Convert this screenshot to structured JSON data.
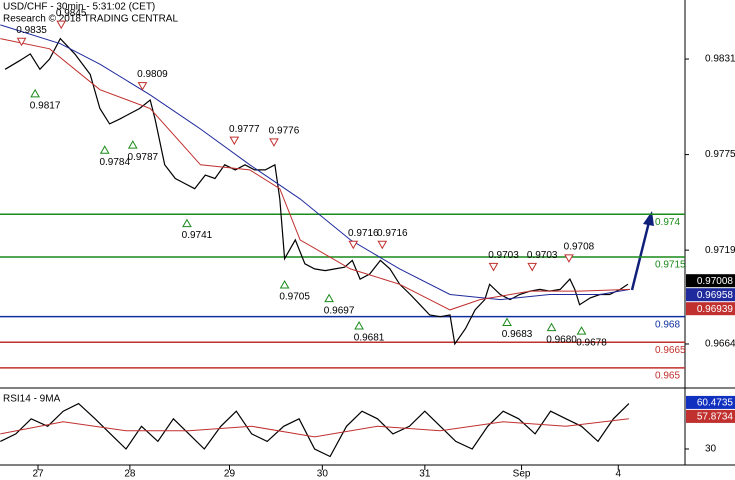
{
  "chart_data": [
    {
      "type": "line",
      "title": "USD/CHF - 30min - 5:31:02 (CET)",
      "subtitle": "Research © 2018 TRADING CENTRAL",
      "xlim": [
        -0.393,
        6.69
      ],
      "xticks": [
        {
          "value": 0,
          "label": "27"
        },
        {
          "value": 0.95,
          "label": "28"
        },
        {
          "value": 1.98,
          "label": "29"
        },
        {
          "value": 2.94,
          "label": "30"
        },
        {
          "value": 4.0,
          "label": "31"
        },
        {
          "value": 5.0,
          "label": "Sep"
        },
        {
          "value": 6.0,
          "label": "4"
        }
      ],
      "ylim": [
        0.96382,
        0.98656
      ],
      "yticks": [
        0.9664,
        0.9719,
        0.9775,
        0.9831
      ],
      "series": [
        {
          "color": "#000000",
          "x": [
            -0.34,
            -0.19,
            -0.08,
            0.02,
            0.12,
            0.23,
            0.28,
            0.38,
            0.54,
            0.64,
            0.74,
            0.85,
            0.95,
            1.05,
            1.16,
            1.21,
            1.31,
            1.42,
            1.52,
            1.62,
            1.73,
            1.83,
            1.93,
            2.04,
            2.14,
            2.24,
            2.35,
            2.45,
            2.5,
            2.55,
            2.66,
            2.76,
            2.86,
            2.97,
            3.07,
            3.17,
            3.25,
            3.33,
            3.43,
            3.54,
            3.64,
            3.74,
            3.85,
            3.95,
            4.05,
            4.16,
            4.26,
            4.31,
            4.42,
            4.52,
            4.62,
            4.67,
            4.78,
            4.88,
            4.98,
            5.09,
            5.19,
            5.29,
            5.4,
            5.5,
            5.55,
            5.6,
            5.71,
            5.81,
            5.91,
            6.02,
            6.1
          ],
          "values": [
            0.9825,
            0.983,
            0.9834,
            0.9825,
            0.9831,
            0.9843,
            0.984,
            0.9834,
            0.9822,
            0.9802,
            0.9793,
            0.9796,
            0.9799,
            0.9802,
            0.9807,
            0.9796,
            0.9769,
            0.9761,
            0.9758,
            0.9755,
            0.9763,
            0.9761,
            0.9769,
            0.9766,
            0.9769,
            0.9766,
            0.9766,
            0.9769,
            0.9749,
            0.9714,
            0.9725,
            0.9711,
            0.9708,
            0.9707,
            0.9708,
            0.9709,
            0.9713,
            0.9702,
            0.9705,
            0.9713,
            0.9708,
            0.9699,
            0.9693,
            0.9687,
            0.9681,
            0.968,
            0.9681,
            0.9664,
            0.9673,
            0.9684,
            0.969,
            0.9699,
            0.9693,
            0.969,
            0.9693,
            0.9695,
            0.9696,
            0.9695,
            0.9696,
            0.9702,
            0.9696,
            0.9687,
            0.9691,
            0.9693,
            0.9693,
            0.9696,
            0.9699
          ]
        },
        {
          "color": "#1f2a9c",
          "x": [
            -0.39,
            0.23,
            0.64,
            1.16,
            1.68,
            2.19,
            2.71,
            3.23,
            3.74,
            4.26,
            4.78,
            5.29,
            5.81,
            6.12
          ],
          "values": [
            0.9851,
            0.984,
            0.9828,
            0.981,
            0.979,
            0.9769,
            0.9749,
            0.9725,
            0.9708,
            0.9693,
            0.969,
            0.9693,
            0.9693,
            0.9696
          ]
        },
        {
          "color": "#c0302f",
          "x": [
            -0.39,
            0.12,
            0.64,
            1.16,
            1.68,
            2.19,
            2.5,
            2.71,
            3.23,
            3.74,
            4.26,
            4.57,
            5.09,
            5.6,
            6.12
          ],
          "values": [
            0.9843,
            0.9837,
            0.9813,
            0.9802,
            0.9769,
            0.9766,
            0.9755,
            0.9725,
            0.9708,
            0.9699,
            0.9684,
            0.969,
            0.9695,
            0.9695,
            0.9696
          ]
        }
      ],
      "levels": [
        {
          "value": 0.974,
          "color": "#1a8a1a"
        },
        {
          "value": 0.9715,
          "color": "#1a8a1a"
        },
        {
          "value": 0.968,
          "color": "#1030a0"
        },
        {
          "value": 0.9665,
          "color": "#c0302f"
        },
        {
          "value": 0.965,
          "color": "#c0302f"
        }
      ],
      "pivots": [
        {
          "x": -0.17,
          "value": 0.9835,
          "color": "#c0302f"
        },
        {
          "x": 0.24,
          "value": 0.9845,
          "color": "#c0302f"
        },
        {
          "x": -0.03,
          "value": 0.9817,
          "color": "#1a8a1a"
        },
        {
          "x": 1.08,
          "value": 0.9809,
          "color": "#c0302f"
        },
        {
          "x": 0.69,
          "value": 0.9784,
          "color": "#1a8a1a"
        },
        {
          "x": 0.98,
          "value": 0.9787,
          "color": "#1a8a1a"
        },
        {
          "x": 2.03,
          "value": 0.9777,
          "color": "#c0302f"
        },
        {
          "x": 2.44,
          "value": 0.9776,
          "color": "#c0302f"
        },
        {
          "x": 1.54,
          "value": 0.9741,
          "color": "#1a8a1a"
        },
        {
          "x": 2.55,
          "value": 0.9705,
          "color": "#1a8a1a"
        },
        {
          "x": 3.26,
          "value": 0.9716,
          "color": "#c0302f"
        },
        {
          "x": 3.56,
          "value": 0.9716,
          "color": "#c0302f"
        },
        {
          "x": 3.01,
          "value": 0.9697,
          "color": "#1a8a1a"
        },
        {
          "x": 3.32,
          "value": 0.9681,
          "color": "#1a8a1a"
        },
        {
          "x": 4.71,
          "value": 0.9703,
          "color": "#c0302f"
        },
        {
          "x": 5.11,
          "value": 0.9703,
          "color": "#c0302f"
        },
        {
          "x": 5.49,
          "value": 0.9708,
          "color": "#c0302f"
        },
        {
          "x": 4.85,
          "value": 0.9683,
          "color": "#1a8a1a"
        },
        {
          "x": 5.31,
          "value": 0.968,
          "label": "0.9680",
          "color": "#1a8a1a"
        },
        {
          "x": 5.62,
          "value": 0.9678,
          "color": "#1a8a1a"
        }
      ],
      "price_tags": [
        {
          "value": 0.97008,
          "color": "#000000"
        },
        {
          "value": 0.96958,
          "color": "#1f2a9c"
        },
        {
          "value": 0.96939,
          "color": "#c0302f"
        }
      ]
    },
    {
      "type": "line",
      "title": "RSI14 - 9MA",
      "xlim": [
        -0.393,
        6.69
      ],
      "ylim": [
        19.4,
        67.7
      ],
      "yticks": [
        30
      ],
      "series": [
        {
          "color": "#000000",
          "x": [
            -0.39,
            -0.23,
            -0.07,
            0.1,
            0.26,
            0.42,
            0.59,
            0.75,
            0.91,
            1.07,
            1.24,
            1.4,
            1.56,
            1.72,
            1.89,
            2.05,
            2.21,
            2.37,
            2.54,
            2.7,
            2.86,
            3.02,
            3.19,
            3.35,
            3.51,
            3.67,
            3.84,
            4.0,
            4.16,
            4.32,
            4.49,
            4.65,
            4.81,
            4.97,
            5.14,
            5.3,
            5.46,
            5.62,
            5.79,
            5.95,
            6.11
          ],
          "values": [
            35,
            40,
            50,
            45,
            55,
            60,
            50,
            40,
            30,
            45,
            35,
            50,
            40,
            30,
            45,
            55,
            40,
            35,
            45,
            50,
            30,
            25,
            45,
            55,
            50,
            40,
            45,
            55,
            45,
            35,
            30,
            45,
            55,
            50,
            40,
            55,
            50,
            45,
            35,
            50,
            60
          ]
        },
        {
          "color": "#c0302f",
          "x": [
            -0.39,
            0.26,
            0.91,
            1.56,
            2.21,
            2.86,
            3.51,
            4.16,
            4.81,
            5.46,
            6.11
          ],
          "values": [
            40,
            48,
            42,
            42,
            45,
            38,
            45,
            42,
            48,
            45,
            50
          ]
        }
      ],
      "value_tags": [
        {
          "value": 60.4735,
          "color": "#1030c0"
        },
        {
          "value": 57.8734,
          "color": "#c0302f"
        }
      ]
    }
  ]
}
